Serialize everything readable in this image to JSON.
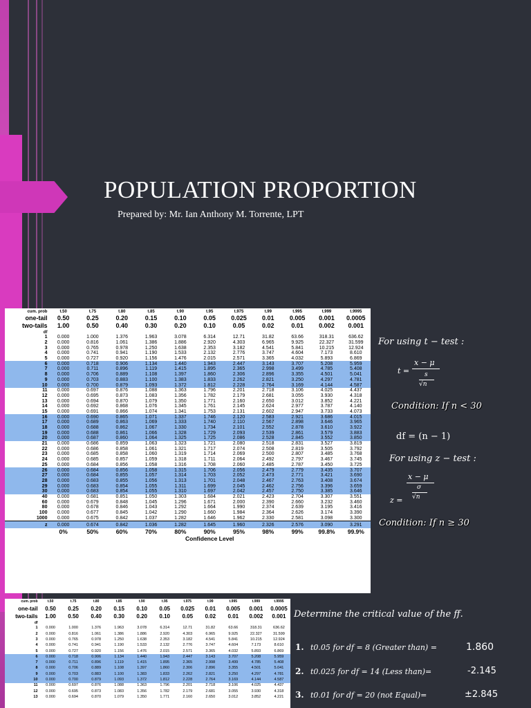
{
  "title": "POPULATION PROPORTION",
  "byline": "Prepared by: Mr. Ian Anthony M. Torrente, LPT",
  "t_table": {
    "t_labels": [
      "t.50",
      "t.75",
      "t.80",
      "t.85",
      "t.90",
      "t.95",
      "t.975",
      "t.99",
      "t.995",
      "t.999",
      "t.9995"
    ],
    "cum_prob_label": "cum. prob",
    "one_tail_label": "one-tail",
    "two_tails_label": "two-tails",
    "df_label": "df",
    "one_tail": [
      "0.50",
      "0.25",
      "0.20",
      "0.15",
      "0.10",
      "0.05",
      "0.025",
      "0.01",
      "0.005",
      "0.001",
      "0.0005"
    ],
    "two_tails": [
      "1.00",
      "0.50",
      "0.40",
      "0.30",
      "0.20",
      "0.10",
      "0.05",
      "0.02",
      "0.01",
      "0.002",
      "0.001"
    ],
    "rows": [
      [
        "1",
        "0.000",
        "1.000",
        "1.376",
        "1.963",
        "3.078",
        "6.314",
        "12.71",
        "31.82",
        "63.66",
        "318.31",
        "636.62"
      ],
      [
        "2",
        "0.000",
        "0.816",
        "1.061",
        "1.386",
        "1.886",
        "2.920",
        "4.303",
        "6.965",
        "9.925",
        "22.327",
        "31.599"
      ],
      [
        "3",
        "0.000",
        "0.765",
        "0.978",
        "1.250",
        "1.638",
        "2.353",
        "3.182",
        "4.541",
        "5.841",
        "10.215",
        "12.924"
      ],
      [
        "4",
        "0.000",
        "0.741",
        "0.941",
        "1.190",
        "1.533",
        "2.132",
        "2.776",
        "3.747",
        "4.604",
        "7.173",
        "8.610"
      ],
      [
        "5",
        "0.000",
        "0.727",
        "0.920",
        "1.156",
        "1.476",
        "2.015",
        "2.571",
        "3.365",
        "4.032",
        "5.893",
        "6.869"
      ],
      [
        "6",
        "0.000",
        "0.718",
        "0.906",
        "1.134",
        "1.440",
        "1.943",
        "2.447",
        "3.143",
        "3.707",
        "5.208",
        "5.959"
      ],
      [
        "7",
        "0.000",
        "0.711",
        "0.896",
        "1.119",
        "1.415",
        "1.895",
        "2.365",
        "2.998",
        "3.499",
        "4.785",
        "5.408"
      ],
      [
        "8",
        "0.000",
        "0.706",
        "0.889",
        "1.108",
        "1.397",
        "1.860",
        "2.306",
        "2.896",
        "3.355",
        "4.501",
        "5.041"
      ],
      [
        "9",
        "0.000",
        "0.703",
        "0.883",
        "1.100",
        "1.383",
        "1.833",
        "2.262",
        "2.821",
        "3.250",
        "4.297",
        "4.781"
      ],
      [
        "10",
        "0.000",
        "0.700",
        "0.879",
        "1.093",
        "1.372",
        "1.812",
        "2.228",
        "2.764",
        "3.169",
        "4.144",
        "4.587"
      ],
      [
        "11",
        "0.000",
        "0.697",
        "0.876",
        "1.088",
        "1.363",
        "1.796",
        "2.201",
        "2.718",
        "3.106",
        "4.025",
        "4.437"
      ],
      [
        "12",
        "0.000",
        "0.695",
        "0.873",
        "1.083",
        "1.356",
        "1.782",
        "2.179",
        "2.681",
        "3.055",
        "3.930",
        "4.318"
      ],
      [
        "13",
        "0.000",
        "0.694",
        "0.870",
        "1.079",
        "1.350",
        "1.771",
        "2.160",
        "2.650",
        "3.012",
        "3.852",
        "4.221"
      ],
      [
        "14",
        "0.000",
        "0.692",
        "0.868",
        "1.076",
        "1.345",
        "1.761",
        "2.145",
        "2.624",
        "2.977",
        "3.787",
        "4.140"
      ],
      [
        "15",
        "0.000",
        "0.691",
        "0.866",
        "1.074",
        "1.341",
        "1.753",
        "2.131",
        "2.602",
        "2.947",
        "3.733",
        "4.073"
      ],
      [
        "16",
        "0.000",
        "0.690",
        "0.865",
        "1.071",
        "1.337",
        "1.746",
        "2.120",
        "2.583",
        "2.921",
        "3.686",
        "4.015"
      ],
      [
        "17",
        "0.000",
        "0.689",
        "0.863",
        "1.069",
        "1.333",
        "1.740",
        "2.110",
        "2.567",
        "2.898",
        "3.646",
        "3.965"
      ],
      [
        "18",
        "0.000",
        "0.688",
        "0.862",
        "1.067",
        "1.330",
        "1.734",
        "2.101",
        "2.552",
        "2.878",
        "3.610",
        "3.922"
      ],
      [
        "19",
        "0.000",
        "0.688",
        "0.861",
        "1.066",
        "1.328",
        "1.729",
        "2.093",
        "2.539",
        "2.861",
        "3.579",
        "3.883"
      ],
      [
        "20",
        "0.000",
        "0.687",
        "0.860",
        "1.064",
        "1.325",
        "1.725",
        "2.086",
        "2.528",
        "2.845",
        "3.552",
        "3.850"
      ],
      [
        "21",
        "0.000",
        "0.686",
        "0.859",
        "1.063",
        "1.323",
        "1.721",
        "2.080",
        "2.518",
        "2.831",
        "3.527",
        "3.819"
      ],
      [
        "22",
        "0.000",
        "0.686",
        "0.858",
        "1.061",
        "1.321",
        "1.717",
        "2.074",
        "2.508",
        "2.819",
        "3.505",
        "3.792"
      ],
      [
        "23",
        "0.000",
        "0.685",
        "0.858",
        "1.060",
        "1.319",
        "1.714",
        "2.069",
        "2.500",
        "2.807",
        "3.485",
        "3.768"
      ],
      [
        "24",
        "0.000",
        "0.685",
        "0.857",
        "1.059",
        "1.318",
        "1.711",
        "2.064",
        "2.492",
        "2.797",
        "3.467",
        "3.745"
      ],
      [
        "25",
        "0.000",
        "0.684",
        "0.856",
        "1.058",
        "1.316",
        "1.708",
        "2.060",
        "2.485",
        "2.787",
        "3.450",
        "3.725"
      ],
      [
        "26",
        "0.000",
        "0.684",
        "0.856",
        "1.058",
        "1.315",
        "1.706",
        "2.056",
        "2.479",
        "2.779",
        "3.435",
        "3.707"
      ],
      [
        "27",
        "0.000",
        "0.684",
        "0.855",
        "1.057",
        "1.314",
        "1.703",
        "2.052",
        "2.473",
        "2.771",
        "3.421",
        "3.690"
      ],
      [
        "28",
        "0.000",
        "0.683",
        "0.855",
        "1.056",
        "1.313",
        "1.701",
        "2.048",
        "2.467",
        "2.763",
        "3.408",
        "3.674"
      ],
      [
        "29",
        "0.000",
        "0.683",
        "0.854",
        "1.055",
        "1.311",
        "1.699",
        "2.045",
        "2.462",
        "2.756",
        "3.396",
        "3.659"
      ],
      [
        "30",
        "0.000",
        "0.683",
        "0.854",
        "1.055",
        "1.310",
        "1.697",
        "2.042",
        "2.457",
        "2.750",
        "3.385",
        "3.646"
      ],
      [
        "40",
        "0.000",
        "0.681",
        "0.851",
        "1.050",
        "1.303",
        "1.684",
        "2.021",
        "2.423",
        "2.704",
        "3.307",
        "3.551"
      ],
      [
        "60",
        "0.000",
        "0.679",
        "0.848",
        "1.045",
        "1.296",
        "1.671",
        "2.000",
        "2.390",
        "2.660",
        "3.232",
        "3.460"
      ],
      [
        "80",
        "0.000",
        "0.678",
        "0.846",
        "1.043",
        "1.292",
        "1.664",
        "1.990",
        "2.374",
        "2.639",
        "3.195",
        "3.416"
      ],
      [
        "100",
        "0.000",
        "0.677",
        "0.845",
        "1.042",
        "1.290",
        "1.660",
        "1.984",
        "2.364",
        "2.626",
        "3.174",
        "3.390"
      ],
      [
        "1000",
        "0.000",
        "0.675",
        "0.842",
        "1.037",
        "1.282",
        "1.646",
        "1.962",
        "2.330",
        "2.581",
        "3.098",
        "3.300"
      ]
    ],
    "z_row": [
      "z",
      "0.000",
      "0.674",
      "0.842",
      "1.036",
      "1.282",
      "1.645",
      "1.960",
      "2.326",
      "2.576",
      "3.090",
      "3.291"
    ],
    "confidence": [
      "0%",
      "50%",
      "60%",
      "70%",
      "80%",
      "90%",
      "95%",
      "98%",
      "99%",
      "99.8%",
      "99.9%"
    ],
    "confidence_label": "Confidence Level"
  },
  "formulas": {
    "t_heading": "For using t − test :",
    "t_lhs": "t =",
    "t_num": "x − μ",
    "t_den_top": "s",
    "t_den_bot": "√n",
    "t_condition": "Condition: If n < 30",
    "df_formula": "df = (n − 1)",
    "z_heading": "For using z − test :",
    "z_lhs": "z =",
    "z_num": "x − μ",
    "z_den_top": "σ",
    "z_den_bot": "√n",
    "z_condition": "Condition: If n ≥ 30"
  },
  "exercise": {
    "prompt": "Determine the critical value of the ff.",
    "items": [
      {
        "num": "1.",
        "expr": "t0.05 for df = 8 (Greater than) =",
        "answer": "1.860"
      },
      {
        "num": "2.",
        "expr": "t0.025 for df = 14 (Less than)=",
        "answer": "-2.145"
      },
      {
        "num": "3.",
        "expr": "t0.01 for df = 20 (not Equal)=",
        "answer": "±2.845"
      }
    ]
  },
  "colors": {
    "background": "#2d3039",
    "accent": "#d93bbf",
    "highlight": "#8fb8ec"
  }
}
